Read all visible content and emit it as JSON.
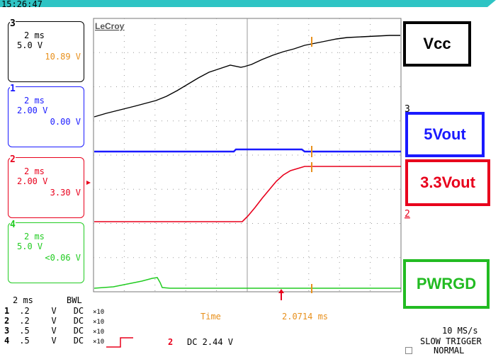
{
  "clock": "15:26:47",
  "brand": "LeCroy",
  "channels": [
    {
      "num": "3",
      "timebase": "2 ms",
      "scale": "5.0 V",
      "value": "10.89 V",
      "color": "#000000",
      "value_color": "#e8901c"
    },
    {
      "num": "1",
      "timebase": "2 ms",
      "scale": "2.00 V",
      "value": "0.00 V",
      "color": "#1a1aff",
      "value_color": "#1a1aff"
    },
    {
      "num": "2",
      "timebase": "2 ms",
      "scale": "2.00 V",
      "value": "3.30 V",
      "color": "#e8001c",
      "value_color": "#e8001c"
    },
    {
      "num": "4",
      "timebase": "2 ms",
      "scale": "5.0 V",
      "value": "<0.06 V",
      "color": "#22cc22",
      "value_color": "#22cc22"
    }
  ],
  "labels": [
    {
      "text": "Vcc",
      "color": "#000000"
    },
    {
      "text": "5Vout",
      "color": "#1a1aff"
    },
    {
      "text": "3.3Vout",
      "color": "#e8001c"
    },
    {
      "text": "PWRGD",
      "color": "#22bb22"
    }
  ],
  "markers": {
    "ch3": "3",
    "ch1": "1",
    "ch2": "2",
    "ch4": "4"
  },
  "bottom": {
    "timebase": "2 ms",
    "bwl": "BWL",
    "rows": [
      {
        "ch": "1",
        "scale": ".2",
        "unit": "V",
        "coupling": "DC",
        "probe": "×10"
      },
      {
        "ch": "2",
        "scale": ".2",
        "unit": "V",
        "coupling": "DC",
        "probe": "×10"
      },
      {
        "ch": "3",
        "scale": ".5",
        "unit": "V",
        "coupling": "DC",
        "probe": "×10"
      },
      {
        "ch": "4",
        "scale": ".5",
        "unit": "V",
        "coupling": "DC",
        "probe": "×10"
      }
    ],
    "time_label": "Time",
    "time_value": "2.0714 ms",
    "trigger_channel": "2",
    "trigger_level": "DC 2.44 V",
    "sample_rate": "10 MS/s",
    "trigger_mode": "SLOW TRIGGER",
    "trigger_state": "NORMAL"
  },
  "colors": {
    "accent": "#2ec4c4",
    "grid": "#888888",
    "orange": "#e8901c"
  }
}
